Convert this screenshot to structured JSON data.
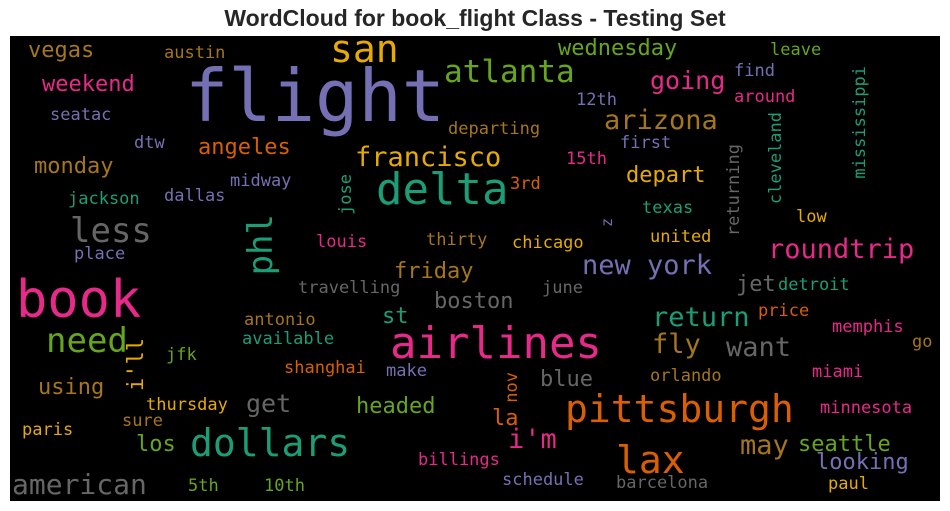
{
  "title": "WordCloud for book_flight Class - Testing Set",
  "colors": {
    "purple": "#7570b3",
    "teal": "#1b9e77",
    "orange": "#d95f02",
    "pink": "#e7298a",
    "green": "#66a61e",
    "gold": "#e6ab02",
    "brown": "#a6761d",
    "gray": "#666666"
  },
  "words": {
    "flight": "flight",
    "book": "book",
    "airlines": "airlines",
    "delta": "delta",
    "pittsburgh": "pittsburgh",
    "dollars": "dollars",
    "san": "san",
    "atlanta": "atlanta",
    "lax": "lax",
    "american": "american",
    "less": "less",
    "phl": "phl",
    "need": "need",
    "francisco": "francisco",
    "arizona": "arizona",
    "roundtrip": "roundtrip",
    "new_york": "new york",
    "return": "return",
    "fly": "fly",
    "want": "want",
    "im": "i'm",
    "may": "may",
    "seattle": "seattle",
    "going": "going",
    "get": "get",
    "looking": "looking",
    "ill": "i'll",
    "vegas": "vegas",
    "weekend": "weekend",
    "monday": "monday",
    "angeles": "angeles",
    "friday": "friday",
    "depart": "depart",
    "wednesday": "wednesday",
    "boston": "boston",
    "blue": "blue",
    "using": "using",
    "headed": "headed",
    "los": "los",
    "jet": "jet",
    "la": "la",
    "st": "st",
    "austin": "austin",
    "leave": "leave",
    "find": "find",
    "around": "around",
    "seatac": "seatac",
    "12th": "12th",
    "mississippi": "mississippi",
    "cleveland": "cleveland",
    "departing": "departing",
    "dtw": "dtw",
    "first": "first",
    "15th": "15th",
    "midway": "midway",
    "jose": "jose",
    "3rd": "3rd",
    "returning": "returning",
    "jackson": "jackson",
    "dallas": "dallas",
    "texas": "texas",
    "low": "low",
    "z": "z",
    "louis": "louis",
    "thirty": "thirty",
    "chicago": "chicago",
    "united": "united",
    "place": "place",
    "travelling": "travelling",
    "june": "june",
    "detroit": "detroit",
    "antonio": "antonio",
    "price": "price",
    "available": "available",
    "memphis": "memphis",
    "go": "go",
    "jfk": "jfk",
    "shanghai": "shanghai",
    "make": "make",
    "orlando": "orlando",
    "miami": "miami",
    "nov": "nov",
    "thursday": "thursday",
    "minnesota": "minnesota",
    "sure": "sure",
    "paris": "paris",
    "billings": "billings",
    "schedule": "schedule",
    "barcelona": "barcelona",
    "5th": "5th",
    "10th": "10th",
    "paul": "paul"
  }
}
